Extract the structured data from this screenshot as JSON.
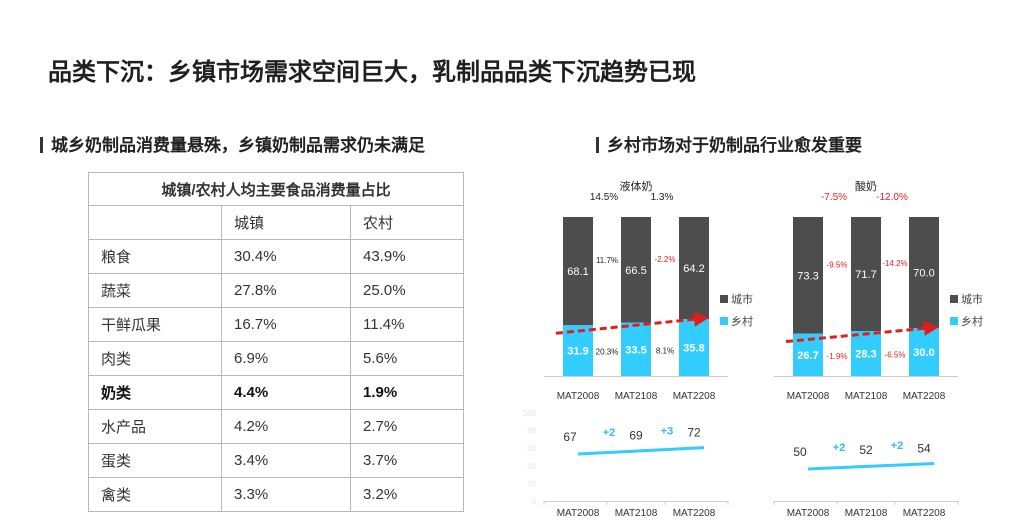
{
  "page": {
    "title": "品类下沉：乡镇市场需求空间巨大，乳制品品类下沉趋势已现",
    "left_heading": "城乡奶制品消费量悬殊，乡镇奶制品需求仍未满足",
    "right_heading": "乡村市场对于奶制品行业愈发重要"
  },
  "table": {
    "caption": "城镇/农村人均主要食品消费量占比",
    "col_headers": [
      "",
      "城镇",
      "农村"
    ],
    "rows": [
      {
        "item": "粮食",
        "urban": "30.4%",
        "rural": "43.9%"
      },
      {
        "item": "蔬菜",
        "urban": "27.8%",
        "rural": "25.0%"
      },
      {
        "item": "干鲜瓜果",
        "urban": "16.7%",
        "rural": "11.4%"
      },
      {
        "item": "肉类",
        "urban": "6.9%",
        "rural": "5.6%"
      },
      {
        "item": "奶类",
        "urban": "4.4%",
        "rural": "1.9%",
        "bold": true
      },
      {
        "item": "水产品",
        "urban": "4.2%",
        "rural": "2.7%"
      },
      {
        "item": "蛋类",
        "urban": "3.4%",
        "rural": "3.7%"
      },
      {
        "item": "禽类",
        "urban": "3.3%",
        "rural": "3.2%"
      }
    ]
  },
  "colors": {
    "city": "#4d4d4d",
    "rural": "#33ccff",
    "trend": "#e01e1e",
    "line": "#33ccff",
    "growth_label": "#33bbee"
  },
  "chart_data": [
    {
      "type": "bar",
      "stacked": true,
      "title": "液体奶",
      "categories": [
        "MAT2008",
        "MAT2108",
        "MAT2208"
      ],
      "series": [
        {
          "name": "城市",
          "values": [
            68.1,
            66.5,
            64.2
          ]
        },
        {
          "name": "乡村",
          "values": [
            31.9,
            33.5,
            35.8
          ]
        }
      ],
      "top_growth": [
        "14.5%",
        "1.3%"
      ],
      "city_growth": [
        "11.7%",
        "-2.2%"
      ],
      "rural_growth": [
        "20.3%",
        "8.1%"
      ],
      "legend": [
        "城市",
        "乡村"
      ],
      "legend_position": "right",
      "ylim": [
        0,
        100
      ]
    },
    {
      "type": "bar",
      "stacked": true,
      "title": "酸奶",
      "categories": [
        "MAT2008",
        "MAT2108",
        "MAT2208"
      ],
      "series": [
        {
          "name": "城市",
          "values": [
            73.3,
            71.7,
            70.0
          ]
        },
        {
          "name": "乡村",
          "values": [
            26.7,
            28.3,
            30.0
          ]
        }
      ],
      "top_growth": [
        "-7.5%",
        "-12.0%"
      ],
      "city_growth": [
        "-9.5%",
        "-14.2%"
      ],
      "rural_growth": [
        "-1.9%",
        "-6.5%"
      ],
      "legend": [
        "城市",
        "乡村"
      ],
      "legend_position": "right",
      "ylim": [
        0,
        100
      ]
    },
    {
      "type": "line",
      "x": [
        "MAT2008",
        "MAT2108",
        "MAT2208"
      ],
      "values": [
        67,
        69,
        72
      ],
      "deltas": [
        "+2",
        "+3"
      ],
      "yticks": [
        0,
        20,
        40,
        60,
        80,
        100
      ],
      "ylim": [
        0,
        100
      ]
    },
    {
      "type": "line",
      "x": [
        "MAT2008",
        "MAT2108",
        "MAT2208"
      ],
      "values": [
        50,
        52,
        54
      ],
      "deltas": [
        "+2",
        "+2"
      ],
      "ylim": [
        0,
        100
      ]
    }
  ]
}
